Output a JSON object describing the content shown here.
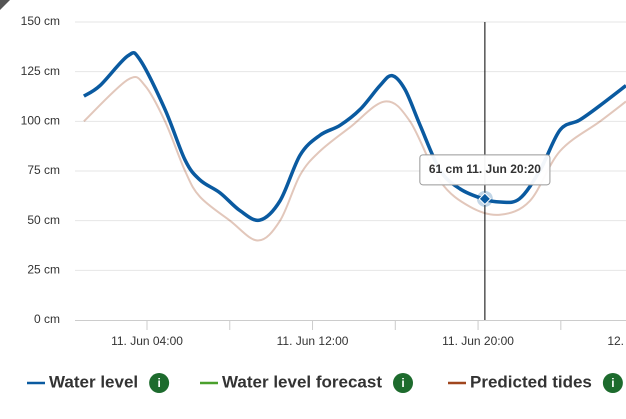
{
  "chart_data": {
    "type": "line",
    "ylim": [
      0,
      150
    ],
    "yticks": [
      {
        "value": 0,
        "label": "0 cm"
      },
      {
        "value": 25,
        "label": "25 cm"
      },
      {
        "value": 50,
        "label": "50 cm"
      },
      {
        "value": 75,
        "label": "75 cm"
      },
      {
        "value": 100,
        "label": "100 cm"
      },
      {
        "value": 125,
        "label": "125 cm"
      },
      {
        "value": 150,
        "label": "150 cm"
      }
    ],
    "xlim": [
      0.52,
      27.15
    ],
    "xticks": [
      {
        "value": 4,
        "label": "11. Jun 04:00"
      },
      {
        "value": 12,
        "label": "11. Jun 12:00"
      },
      {
        "value": 20,
        "label": "11. Jun 20:00"
      },
      {
        "value": 28,
        "label": "12."
      }
    ],
    "xminorticks": [
      8,
      16,
      24
    ],
    "grid": true,
    "series": [
      {
        "name": "Water level",
        "color": "#0a5aa0",
        "x": [
          0.95,
          1.73,
          3.08,
          3.66,
          4.87,
          5.84,
          6.56,
          7.53,
          8.5,
          9.46,
          10.43,
          11.4,
          12.36,
          13.33,
          14.3,
          15.26,
          15.84,
          16.47,
          17.2,
          18.16,
          19.13,
          20.24,
          21.06,
          22,
          23,
          23.96,
          24.9,
          25.9,
          27.15
        ],
        "values": [
          112.7,
          118,
          133,
          131,
          106,
          80.5,
          70.5,
          64,
          55,
          50.3,
          60,
          83,
          93,
          98,
          106,
          118,
          123,
          116,
          98,
          75.5,
          66,
          61,
          59.4,
          61,
          75.5,
          95.6,
          100.6,
          108,
          118
        ]
      },
      {
        "name": "Water level forecast",
        "color": "#4aa02c",
        "x": [],
        "values": []
      },
      {
        "name": "Predicted tides",
        "color": "#a0461e",
        "x": [
          0.95,
          3.08,
          3.9,
          4.87,
          5.84,
          6.56,
          8.01,
          9.36,
          10.43,
          11.4,
          12.36,
          13.81,
          15.5,
          16.71,
          18.16,
          19.61,
          21.06,
          22.51,
          23.96,
          25.9,
          27.15
        ],
        "values": [
          100,
          121,
          118,
          100,
          75,
          62,
          50,
          40,
          50,
          73,
          85,
          97,
          110,
          100,
          70,
          57,
          53,
          60,
          85,
          100,
          110
        ]
      }
    ],
    "tooltip": {
      "text": "61 cm 11. Jun 20:20",
      "x": 20.33,
      "value": 61
    },
    "info_icon_label": "i"
  }
}
